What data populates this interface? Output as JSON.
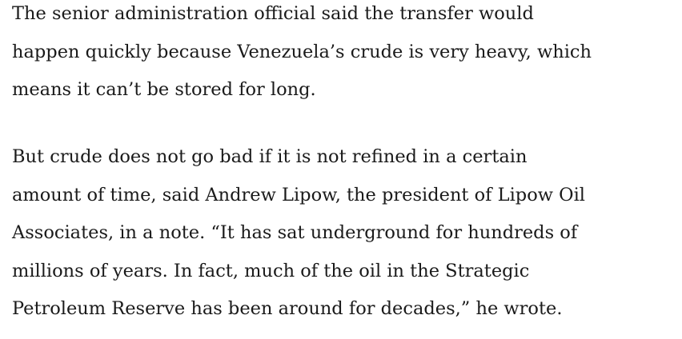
{
  "paragraphs": [
    {
      "lines": [
        "The senior administration official said the transfer would",
        "happen quickly because Venezuela’s crude is very heavy, which",
        "means it can’t be stored for long."
      ]
    },
    {
      "lines": [
        "But crude does not go bad if it is not refined in a certain",
        "amount of time, said Andrew Lipow, the president of Lipow Oil",
        "Associates, in a note. “It has sat underground for hundreds of",
        "millions of years. In fact, much of the oil in the Strategic",
        "Petroleum Reserve has been around for decades,” he wrote."
      ]
    }
  ]
}
